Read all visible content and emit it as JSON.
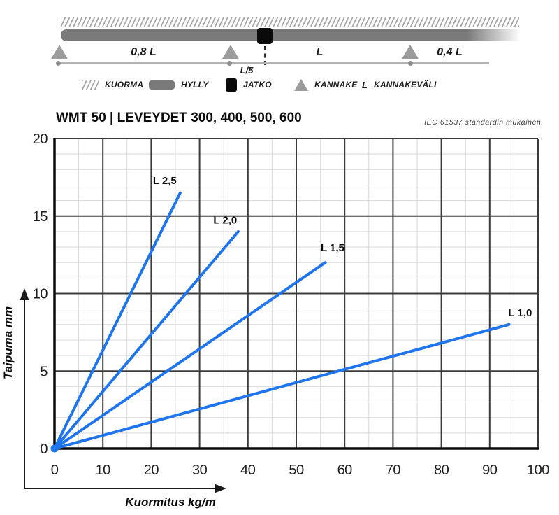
{
  "diagram": {
    "span1": "0,8 L",
    "span2": "L",
    "span3": "0,4 L",
    "joint_offset": "L/5"
  },
  "legend": {
    "items": [
      {
        "swatch": "hatch",
        "label": "KUORMA"
      },
      {
        "swatch": "bar",
        "label": "HYLLY"
      },
      {
        "swatch": "joint",
        "label": "JATKO"
      },
      {
        "swatch": "triangle",
        "label": "KANNAKE"
      },
      {
        "swatch": "letter",
        "symbol": "L",
        "label": "KANNAKEVÄLI"
      }
    ]
  },
  "header": {
    "title": "WMT 50 | LEVEYDET 300, 400, 500, 600",
    "standard_note": "IEC 61537 standardin mukainen."
  },
  "chart_data": {
    "type": "line",
    "title": "",
    "xlabel": "Kuormitus kg/m",
    "ylabel": "Taipuma mm",
    "xlim": [
      0,
      100
    ],
    "ylim": [
      0,
      20
    ],
    "x_major": 10,
    "x_minor": 5,
    "y_major": 5,
    "y_minor": 1,
    "x_ticks": [
      0,
      10,
      20,
      30,
      40,
      50,
      60,
      70,
      80,
      90,
      100
    ],
    "y_ticks": [
      0,
      5,
      10,
      15,
      20
    ],
    "grid": true,
    "legend_position": "inline-labels",
    "series": [
      {
        "name": "L 2,5",
        "points": [
          [
            0,
            0
          ],
          [
            26,
            16.5
          ]
        ],
        "label_at": [
          22.8,
          17.3
        ]
      },
      {
        "name": "L 2,0",
        "points": [
          [
            0,
            0
          ],
          [
            38,
            14
          ]
        ],
        "label_at": [
          35.3,
          14.75
        ]
      },
      {
        "name": "L 1,5",
        "points": [
          [
            0,
            0
          ],
          [
            56,
            12
          ]
        ],
        "label_at": [
          57.5,
          12.95
        ]
      },
      {
        "name": "L 1,0",
        "points": [
          [
            0,
            0
          ],
          [
            94,
            8
          ]
        ],
        "label_at": [
          96.3,
          8.75
        ]
      }
    ],
    "colors": {
      "line": "#1e75ee",
      "grid_major": "#3c3c3c",
      "grid_minor": "#d9d9d9",
      "axis": "#0a0a0a",
      "tick_text": "#1f1f1f",
      "arrow": "#1a1a1a"
    }
  }
}
